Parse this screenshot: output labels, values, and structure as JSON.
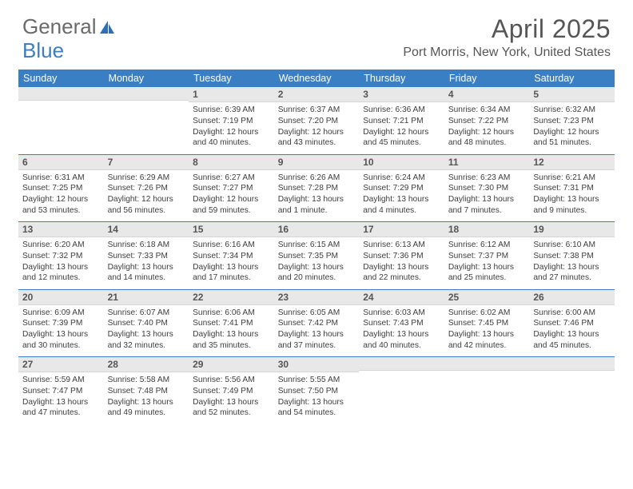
{
  "logo": {
    "text1": "General",
    "text2": "Blue"
  },
  "title": "April 2025",
  "location": "Port Morris, New York, United States",
  "colors": {
    "header_bg": "#3a7fc4",
    "header_text": "#ffffff",
    "daynum_bg": "#e8e8e8",
    "text": "#3d3d3d",
    "title_text": "#565656",
    "week_divider": "#3a7fc4"
  },
  "weekdays": [
    "Sunday",
    "Monday",
    "Tuesday",
    "Wednesday",
    "Thursday",
    "Friday",
    "Saturday"
  ],
  "weeks": [
    [
      null,
      null,
      {
        "n": "1",
        "sr": "6:39 AM",
        "ss": "7:19 PM",
        "dl": "12 hours and 40 minutes."
      },
      {
        "n": "2",
        "sr": "6:37 AM",
        "ss": "7:20 PM",
        "dl": "12 hours and 43 minutes."
      },
      {
        "n": "3",
        "sr": "6:36 AM",
        "ss": "7:21 PM",
        "dl": "12 hours and 45 minutes."
      },
      {
        "n": "4",
        "sr": "6:34 AM",
        "ss": "7:22 PM",
        "dl": "12 hours and 48 minutes."
      },
      {
        "n": "5",
        "sr": "6:32 AM",
        "ss": "7:23 PM",
        "dl": "12 hours and 51 minutes."
      }
    ],
    [
      {
        "n": "6",
        "sr": "6:31 AM",
        "ss": "7:25 PM",
        "dl": "12 hours and 53 minutes."
      },
      {
        "n": "7",
        "sr": "6:29 AM",
        "ss": "7:26 PM",
        "dl": "12 hours and 56 minutes."
      },
      {
        "n": "8",
        "sr": "6:27 AM",
        "ss": "7:27 PM",
        "dl": "12 hours and 59 minutes."
      },
      {
        "n": "9",
        "sr": "6:26 AM",
        "ss": "7:28 PM",
        "dl": "13 hours and 1 minute."
      },
      {
        "n": "10",
        "sr": "6:24 AM",
        "ss": "7:29 PM",
        "dl": "13 hours and 4 minutes."
      },
      {
        "n": "11",
        "sr": "6:23 AM",
        "ss": "7:30 PM",
        "dl": "13 hours and 7 minutes."
      },
      {
        "n": "12",
        "sr": "6:21 AM",
        "ss": "7:31 PM",
        "dl": "13 hours and 9 minutes."
      }
    ],
    [
      {
        "n": "13",
        "sr": "6:20 AM",
        "ss": "7:32 PM",
        "dl": "13 hours and 12 minutes."
      },
      {
        "n": "14",
        "sr": "6:18 AM",
        "ss": "7:33 PM",
        "dl": "13 hours and 14 minutes."
      },
      {
        "n": "15",
        "sr": "6:16 AM",
        "ss": "7:34 PM",
        "dl": "13 hours and 17 minutes."
      },
      {
        "n": "16",
        "sr": "6:15 AM",
        "ss": "7:35 PM",
        "dl": "13 hours and 20 minutes."
      },
      {
        "n": "17",
        "sr": "6:13 AM",
        "ss": "7:36 PM",
        "dl": "13 hours and 22 minutes."
      },
      {
        "n": "18",
        "sr": "6:12 AM",
        "ss": "7:37 PM",
        "dl": "13 hours and 25 minutes."
      },
      {
        "n": "19",
        "sr": "6:10 AM",
        "ss": "7:38 PM",
        "dl": "13 hours and 27 minutes."
      }
    ],
    [
      {
        "n": "20",
        "sr": "6:09 AM",
        "ss": "7:39 PM",
        "dl": "13 hours and 30 minutes."
      },
      {
        "n": "21",
        "sr": "6:07 AM",
        "ss": "7:40 PM",
        "dl": "13 hours and 32 minutes."
      },
      {
        "n": "22",
        "sr": "6:06 AM",
        "ss": "7:41 PM",
        "dl": "13 hours and 35 minutes."
      },
      {
        "n": "23",
        "sr": "6:05 AM",
        "ss": "7:42 PM",
        "dl": "13 hours and 37 minutes."
      },
      {
        "n": "24",
        "sr": "6:03 AM",
        "ss": "7:43 PM",
        "dl": "13 hours and 40 minutes."
      },
      {
        "n": "25",
        "sr": "6:02 AM",
        "ss": "7:45 PM",
        "dl": "13 hours and 42 minutes."
      },
      {
        "n": "26",
        "sr": "6:00 AM",
        "ss": "7:46 PM",
        "dl": "13 hours and 45 minutes."
      }
    ],
    [
      {
        "n": "27",
        "sr": "5:59 AM",
        "ss": "7:47 PM",
        "dl": "13 hours and 47 minutes."
      },
      {
        "n": "28",
        "sr": "5:58 AM",
        "ss": "7:48 PM",
        "dl": "13 hours and 49 minutes."
      },
      {
        "n": "29",
        "sr": "5:56 AM",
        "ss": "7:49 PM",
        "dl": "13 hours and 52 minutes."
      },
      {
        "n": "30",
        "sr": "5:55 AM",
        "ss": "7:50 PM",
        "dl": "13 hours and 54 minutes."
      },
      null,
      null,
      null
    ]
  ],
  "labels": {
    "sunrise": "Sunrise:",
    "sunset": "Sunset:",
    "daylight": "Daylight:"
  }
}
